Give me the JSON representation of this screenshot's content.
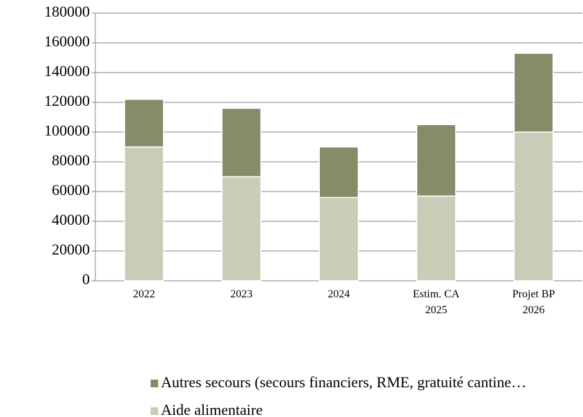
{
  "chart_data": {
    "type": "stacked_bar",
    "categories": [
      "2022",
      "2023",
      "2024",
      "Estim. CA\n2025",
      "Projet BP\n2026"
    ],
    "series": [
      {
        "name": "Aide alimentaire",
        "color": "#c9cdb8",
        "values": [
          90000,
          70000,
          56000,
          57000,
          100000
        ]
      },
      {
        "name": "Autres secours (secours financiers, RME, gratuité cantine…",
        "color": "#868c68",
        "values": [
          32000,
          46000,
          34000,
          48000,
          53000
        ]
      }
    ],
    "ylim": [
      0,
      180000
    ],
    "yticks": [
      0,
      20000,
      40000,
      60000,
      80000,
      100000,
      120000,
      140000,
      160000,
      180000
    ],
    "grid": true
  }
}
